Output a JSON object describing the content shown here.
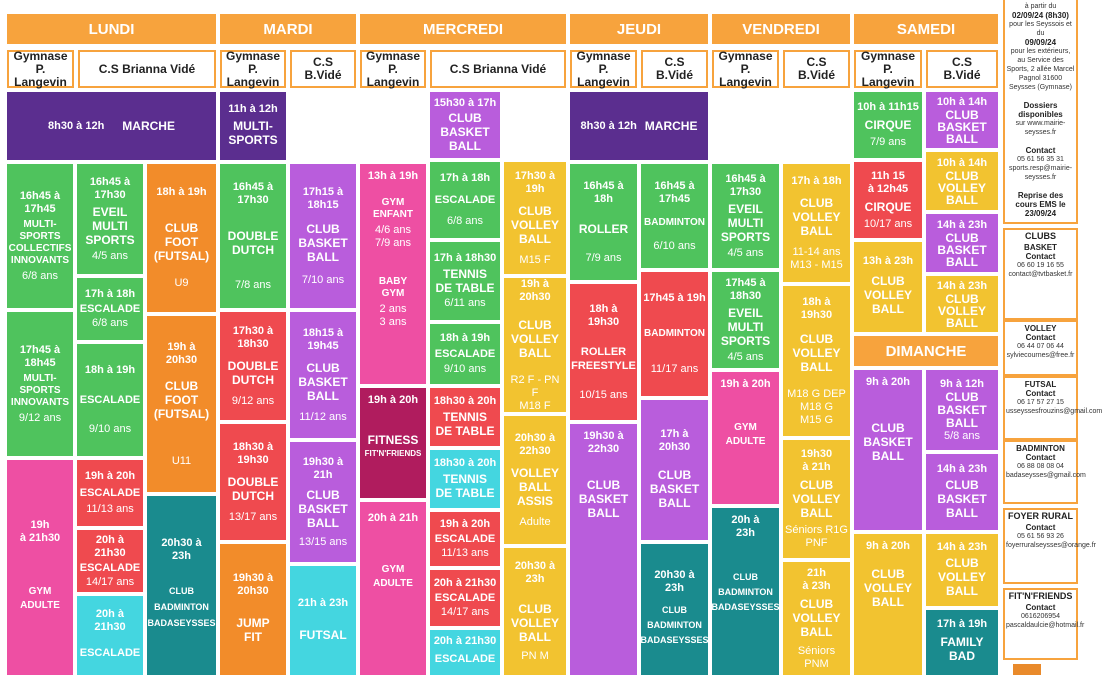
{
  "days": [
    "LUNDI",
    "MARDI",
    "MERCREDI",
    "JEUDI",
    "VENDREDI",
    "SAMEDI",
    "DIMANCHE"
  ],
  "venues": {
    "gym_langevin": "Gymnase\nP. Langevin",
    "cs_full": "C.S Brianna Vidé",
    "cs_short": "C.S\nB.Vidé"
  },
  "blocks": {
    "lun_marche": {
      "time": "8h30 à 12h",
      "name": "MARCHE"
    },
    "lun_ms1": {
      "time": "16h45 à\n17h45",
      "name": "MULTI-\nSPORTS\nCOLLECTIFS\nINNOVANTS",
      "age": "6/8 ans"
    },
    "lun_ms2": {
      "time": "17h45 à\n18h45",
      "name": "MULTI-\nSPORTS\nINNOVANTS",
      "age": "9/12 ans"
    },
    "lun_gym": {
      "time": "19h\nà 21h30",
      "name": "GYM\nADULTE"
    },
    "lun_eveil": {
      "time": "16h45 à\n17h30",
      "name": "EVEIL\nMULTI\nSPORTS",
      "age": "4/5 ans"
    },
    "lun_esc1": {
      "time": "17h à 18h",
      "name": "ESCALADE",
      "age": "6/8 ans"
    },
    "lun_esc2": {
      "time": "18h à 19h",
      "name": "ESCALADE",
      "age": "9/10 ans"
    },
    "lun_esc3": {
      "time": "19h à 20h",
      "name": "ESCALADE",
      "age": "11/13 ans"
    },
    "lun_esc4": {
      "time": "20h à 21h30",
      "name": "ESCALADE",
      "age": "14/17 ans"
    },
    "lun_esc5": {
      "time": "20h à 21h30",
      "name": "ESCALADE"
    },
    "lun_foot1": {
      "time": "18h à 19h",
      "name": "CLUB\nFOOT\n(FUTSAL)",
      "age": "U9"
    },
    "lun_foot2": {
      "time": "19h à\n20h30",
      "name": "CLUB\nFOOT\n(FUTSAL)",
      "age": "U11"
    },
    "lun_bad": {
      "time": "20h30 à\n23h",
      "name": "CLUB\nBADMINTON\nBADASEYSSES"
    },
    "mar_ms": {
      "time": "11h à 12h",
      "name": "MULTI-\nSPORTS"
    },
    "mar_dd1": {
      "time": "16h45 à\n17h30",
      "name": "DOUBLE\nDUTCH",
      "age": "7/8 ans"
    },
    "mar_dd2": {
      "time": "17h30 à\n18h30",
      "name": "DOUBLE\nDUTCH",
      "age": "9/12 ans"
    },
    "mar_dd3": {
      "time": "18h30 à\n19h30",
      "name": "DOUBLE\nDUTCH",
      "age": "13/17 ans"
    },
    "mar_jump": {
      "time": "19h30 à\n20h30",
      "name": "JUMP\nFIT"
    },
    "mar_bb1": {
      "time": "17h15 à\n18h15",
      "name": "CLUB\nBASKET\nBALL",
      "age": "7/10 ans"
    },
    "mar_bb2": {
      "time": "18h15 à\n19h45",
      "name": "CLUB\nBASKET\nBALL",
      "age": "11/12 ans"
    },
    "mar_bb3": {
      "time": "19h30 à\n21h",
      "name": "CLUB\nBASKET\nBALL",
      "age": "13/15 ans"
    },
    "mar_futsal": {
      "time": "21h à 23h",
      "name": "FUTSAL"
    },
    "mer_gymenf": {
      "time": "13h à 19h",
      "name": "GYM\nENFANT",
      "age": "4/6 ans\n7/9 ans"
    },
    "mer_baby": {
      "name": "BABY\nGYM",
      "age": "2 ans\n3 ans"
    },
    "mer_fitness": {
      "time": "19h à 20h",
      "name": "FITNESS",
      "sub": "FIT'N'FRIENDS"
    },
    "mer_gymad": {
      "time": "20h à 21h",
      "name": "GYM\nADULTE"
    },
    "mer_bb": {
      "time": "15h30 à 17h",
      "name": "CLUB\nBASKET\nBALL"
    },
    "mer_esc1": {
      "time": "17h à 18h",
      "name": "ESCALADE",
      "age": "6/8 ans"
    },
    "mer_tt1": {
      "time": "17h à 18h30",
      "name": "TENNIS\nDE TABLE",
      "age": "6/11 ans"
    },
    "mer_esc2": {
      "time": "18h à 19h",
      "name": "ESCALADE",
      "age": "9/10 ans"
    },
    "mer_tt2": {
      "time": "18h30 à 20h",
      "name": "TENNIS\nDE TABLE"
    },
    "mer_tt3": {
      "time": "18h30 à 20h",
      "name": "TENNIS\nDE TABLE"
    },
    "mer_esc3": {
      "time": "19h à 20h",
      "name": "ESCALADE",
      "age": "11/13 ans"
    },
    "mer_esc4": {
      "time": "20h à 21h30",
      "name": "ESCALADE",
      "age": "14/17 ans"
    },
    "mer_esc5": {
      "time": "20h à 21h30",
      "name": "ESCALADE"
    },
    "mer_vb1": {
      "time": "17h30 à 19h",
      "name": "CLUB\nVOLLEY\nBALL",
      "age": "M15 F"
    },
    "mer_vb2": {
      "time": "19h à 20h30",
      "name": "CLUB\nVOLLEY\nBALL",
      "age": "R2 F - PN F\nM18 F"
    },
    "mer_vbassis": {
      "time": "20h30 à\n22h30",
      "name": "VOLLEY\nBALL\nASSIS",
      "age": "Adulte"
    },
    "mer_vb3": {
      "time": "20h30 à 23h",
      "name": "CLUB\nVOLLEY\nBALL",
      "age": "PN M"
    },
    "jeu_marche": {
      "time": "8h30 à 12h",
      "name": "MARCHE"
    },
    "jeu_roller": {
      "time": "16h45 à\n18h",
      "name": "ROLLER",
      "age": "7/9 ans"
    },
    "jeu_rollerf": {
      "time": "18h à\n19h30",
      "name": "ROLLER\nFREESTYLE",
      "age": "10/15 ans"
    },
    "jeu_bb1": {
      "time": "19h30 à\n22h30",
      "name": "CLUB\nBASKET\nBALL"
    },
    "jeu_bad1": {
      "time": "16h45 à\n17h45",
      "name": "BADMINTON",
      "age": "6/10 ans"
    },
    "jeu_bad2": {
      "time": "17h45 à 19h",
      "name": "BADMINTON",
      "age": "11/17 ans"
    },
    "jeu_bb2": {
      "time": "17h à\n20h30",
      "name": "CLUB\nBASKET\nBALL"
    },
    "jeu_bad3": {
      "time": "20h30 à\n23h",
      "name": "CLUB\nBADMINTON\nBADASEYSSES"
    },
    "ven_eveil1": {
      "time": "16h45 à\n17h30",
      "name": "EVEIL\nMULTI\nSPORTS",
      "age": "4/5 ans"
    },
    "ven_eveil2": {
      "time": "17h45 à\n18h30",
      "name": "EVEIL\nMULTI\nSPORTS",
      "age": "4/5 ans"
    },
    "ven_gym": {
      "time": "19h à 20h",
      "name": "GYM\nADULTE"
    },
    "ven_bad": {
      "time": "20h à\n23h",
      "name": "CLUB\nBADMINTON\nBADASEYSSES"
    },
    "ven_vb1": {
      "time": "17h à 18h",
      "name": "CLUB\nVOLLEY\nBALL",
      "age": "11-14 ans\nM13 - M15"
    },
    "ven_vb2": {
      "time": "18h à\n19h30",
      "name": "CLUB\nVOLLEY\nBALL",
      "age": "M18 G DEP\nM18 G\nM15 G"
    },
    "ven_vb3": {
      "time": "19h30\nà 21h",
      "name": "CLUB\nVOLLEY\nBALL",
      "age": "Séniors R1G\nPNF"
    },
    "ven_vb4": {
      "time": "21h\nà 23h",
      "name": "CLUB\nVOLLEY\nBALL",
      "age": "Séniors PNM"
    },
    "sam_cirque1": {
      "time": "10h à 11h15",
      "name": "CIRQUE",
      "age": "7/9 ans"
    },
    "sam_cirque2": {
      "time": "11h 15\nà 12h45",
      "name": "CIRQUE",
      "age": "10/17 ans"
    },
    "sam_vb1": {
      "time": "13h à 23h",
      "name": "CLUB\nVOLLEY\nBALL"
    },
    "sam_bb": {
      "time": "10h à 14h",
      "name": "CLUB\nBASKET\nBALL"
    },
    "sam_vb2": {
      "time": "10h à 14h",
      "name": "CLUB\nVOLLEY\nBALL"
    },
    "sam_bb2": {
      "time": "14h à 23h",
      "name": "CLUB\nBASKET\nBALL"
    },
    "sam_vb3": {
      "time": "14h à 23h",
      "name": "CLUB\nVOLLEY\nBALL"
    },
    "dim_bb1": {
      "time": "9h à 20h",
      "name": "CLUB\nBASKET\nBALL"
    },
    "dim_vb1": {
      "time": "9h à 20h",
      "name": "CLUB\nVOLLEY\nBALL"
    },
    "dim_bb2": {
      "time": "9h à 12h",
      "name": "CLUB\nBASKET\nBALL",
      "age": "5/8 ans"
    },
    "dim_bb3": {
      "time": "14h à 23h",
      "name": "CLUB\nBASKET\nBALL"
    },
    "dim_vb2": {
      "time": "14h à 23h",
      "name": "CLUB\nVOLLEY\nBALL"
    },
    "dim_family": {
      "time": "17h à 19h",
      "name": "FAMILY\nBAD"
    }
  },
  "sidebar": {
    "info1": "à partir du",
    "info2": "02/09/24 (8h30)",
    "info3": "pour les Seyssois et du",
    "info4": "09/09/24",
    "info5": "pour les extérieurs, au Service des Sports, 2 allée Marcel Pagnol 31600 Seysses (Gymnase)",
    "dossiers": "Dossiers disponibles",
    "dossiers_sub": "sur www.mairie-seysses.fr",
    "contact_label": "Contact",
    "contact_val": "05 61 56 35 31 sports.resp@mairie-seysses.fr",
    "reprise": "Reprise des cours EMS le 23/09/24",
    "clubs_title": "CLUBS",
    "basket": "BASKET",
    "basket_contact": "06 60 19 16 55 contact@tvtbasket.fr",
    "volley": "VOLLEY",
    "volley_contact": "06 44 07 06 44 sylviecournes@free.fr",
    "futsal": "FUTSAL",
    "futsal_contact": "06 17 57 27 15 usseyssesfrouzins@gmail.com",
    "badminton": "BADMINTON",
    "badminton_contact": "06 88 08 08 04 badaseysses@gmail.com",
    "foyer": "FOYER RURAL",
    "foyer_contact": "05 61 56 93 26 foyerruralseysses@orange.fr",
    "fitn": "FIT'N'FRIENDS",
    "fitn_contact": "0616206954 pascaldaulcie@hotmail.fr"
  }
}
